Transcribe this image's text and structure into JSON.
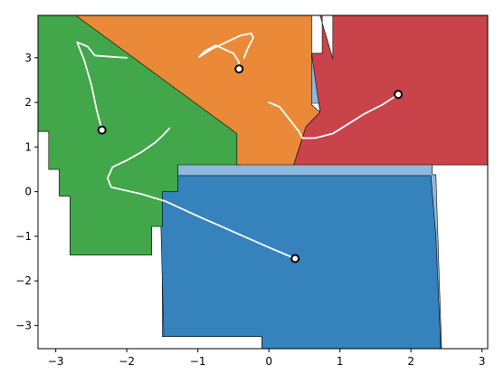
{
  "chart_data": {
    "type": "area",
    "title": "",
    "xlabel": "",
    "ylabel": "",
    "xlim": [
      -3.25,
      3.08
    ],
    "ylim": [
      -3.52,
      3.95
    ],
    "x_ticks": [
      -3,
      -2,
      -1,
      0,
      1,
      2,
      3
    ],
    "y_ticks": [
      -3,
      -2,
      -1,
      0,
      1,
      2,
      3
    ],
    "x_tick_labels": [
      "−3",
      "−2",
      "−1",
      "0",
      "1",
      "2",
      "3"
    ],
    "y_tick_labels": [
      "−3",
      "−2",
      "−1",
      "0",
      "1",
      "2",
      "3"
    ],
    "grid": false,
    "colors": {
      "free_space": "#8fb8de",
      "blue": "#3582bd",
      "green": "#42a64a",
      "orange": "#ea8a38",
      "red": "#c9434b",
      "path": "#ffffff",
      "agent_fill": "#ffffff",
      "agent_edge": "#000000"
    },
    "free_space_polygon": [
      [
        -3.25,
        3.95
      ],
      [
        0.6,
        3.95
      ],
      [
        0.6,
        3.1
      ],
      [
        0.75,
        3.1
      ],
      [
        0.75,
        1.98
      ],
      [
        0.6,
        1.98
      ],
      [
        0.6,
        1.8
      ],
      [
        0.9,
        1.8
      ],
      [
        0.9,
        3.95
      ],
      [
        3.08,
        3.95
      ],
      [
        3.08,
        0.6
      ],
      [
        2.3,
        0.6
      ],
      [
        2.3,
        0.38
      ],
      [
        2.35,
        0.38
      ],
      [
        2.43,
        -3.52
      ],
      [
        -0.1,
        -3.52
      ],
      [
        -0.1,
        -3.25
      ],
      [
        -1.5,
        -3.25
      ],
      [
        -1.5,
        -0.78
      ],
      [
        -1.65,
        -0.78
      ],
      [
        -1.65,
        -1.42
      ],
      [
        -2.8,
        -1.42
      ],
      [
        -2.8,
        -0.1
      ],
      [
        -2.95,
        -0.1
      ],
      [
        -2.95,
        0.5
      ],
      [
        -3.1,
        0.5
      ],
      [
        -3.1,
        1.35
      ],
      [
        -3.25,
        1.35
      ]
    ],
    "regions": [
      {
        "color": "blue",
        "polygon": [
          [
            -1.52,
            0.36
          ],
          [
            2.28,
            0.36
          ],
          [
            2.35,
            -1.0
          ],
          [
            2.42,
            -3.52
          ],
          [
            -0.1,
            -3.52
          ],
          [
            -0.1,
            -3.25
          ],
          [
            -1.48,
            -3.25
          ],
          [
            -1.52,
            -0.75
          ]
        ]
      },
      {
        "color": "green",
        "polygon": [
          [
            -3.25,
            3.95
          ],
          [
            -2.72,
            3.95
          ],
          [
            -1.4,
            2.8
          ],
          [
            -0.45,
            1.3
          ],
          [
            -0.4,
            0.6
          ],
          [
            -1.28,
            0.6
          ],
          [
            -1.28,
            0.0
          ],
          [
            -1.5,
            0.0
          ],
          [
            -1.5,
            -0.78
          ],
          [
            -1.65,
            -0.78
          ],
          [
            -1.65,
            -1.42
          ],
          [
            -2.8,
            -1.42
          ],
          [
            -2.8,
            -0.1
          ],
          [
            -2.95,
            -0.1
          ],
          [
            -2.95,
            0.5
          ],
          [
            -3.1,
            0.5
          ],
          [
            -3.1,
            1.35
          ],
          [
            -3.25,
            1.35
          ]
        ]
      },
      {
        "color": "orange",
        "polygon": [
          [
            -2.72,
            3.95
          ],
          [
            0.6,
            3.95
          ],
          [
            0.6,
            1.95
          ],
          [
            0.72,
            1.78
          ],
          [
            0.52,
            1.45
          ],
          [
            0.35,
            0.6
          ],
          [
            -0.45,
            0.6
          ],
          [
            -0.45,
            1.3
          ]
        ]
      },
      {
        "color": "red",
        "polygon": [
          [
            0.72,
            3.95
          ],
          [
            0.75,
            3.95
          ],
          [
            0.75,
            3.1
          ],
          [
            0.6,
            3.1
          ],
          [
            0.72,
            1.78
          ],
          [
            0.52,
            1.45
          ],
          [
            0.35,
            0.6
          ],
          [
            3.08,
            0.6
          ],
          [
            3.08,
            3.95
          ],
          [
            0.9,
            3.95
          ],
          [
            0.9,
            2.98
          ]
        ]
      }
    ],
    "paths": [
      [
        [
          -2.35,
          1.38
        ],
        [
          -2.42,
          1.8
        ],
        [
          -2.5,
          2.4
        ],
        [
          -2.6,
          2.95
        ],
        [
          -2.7,
          3.35
        ],
        [
          -2.55,
          3.25
        ],
        [
          -2.45,
          3.05
        ],
        [
          -2.2,
          3.02
        ],
        [
          -2.0,
          3.0
        ]
      ],
      [
        [
          -0.45,
          2.75
        ],
        [
          -0.42,
          2.9
        ],
        [
          -0.5,
          3.1
        ],
        [
          -0.75,
          3.28
        ],
        [
          -0.9,
          3.15
        ],
        [
          -0.98,
          3.02
        ],
        [
          -0.8,
          3.2
        ],
        [
          -0.6,
          3.35
        ],
        [
          -0.4,
          3.5
        ],
        [
          -0.25,
          3.55
        ],
        [
          -0.22,
          3.45
        ],
        [
          -0.3,
          3.2
        ],
        [
          -0.35,
          3.0
        ]
      ],
      [
        [
          1.82,
          2.18
        ],
        [
          1.6,
          1.95
        ],
        [
          1.35,
          1.75
        ],
        [
          1.1,
          1.5
        ],
        [
          0.9,
          1.3
        ],
        [
          0.65,
          1.2
        ],
        [
          0.47,
          1.2
        ],
        [
          0.42,
          1.35
        ],
        [
          0.3,
          1.6
        ],
        [
          0.15,
          1.9
        ],
        [
          0.0,
          2.0
        ]
      ],
      [
        [
          0.37,
          -1.5
        ],
        [
          0.0,
          -1.25
        ],
        [
          -0.5,
          -0.9
        ],
        [
          -1.0,
          -0.55
        ],
        [
          -1.45,
          -0.22
        ],
        [
          -1.8,
          -0.05
        ],
        [
          -2.22,
          0.1
        ],
        [
          -2.27,
          0.3
        ],
        [
          -2.2,
          0.55
        ],
        [
          -2.0,
          0.7
        ],
        [
          -1.8,
          0.88
        ],
        [
          -1.6,
          1.1
        ],
        [
          -1.5,
          1.25
        ],
        [
          -1.4,
          1.42
        ]
      ]
    ],
    "agents": [
      {
        "x": -2.35,
        "y": 1.38
      },
      {
        "x": -0.42,
        "y": 2.75
      },
      {
        "x": 1.82,
        "y": 2.18
      },
      {
        "x": 0.37,
        "y": -1.5
      }
    ]
  }
}
